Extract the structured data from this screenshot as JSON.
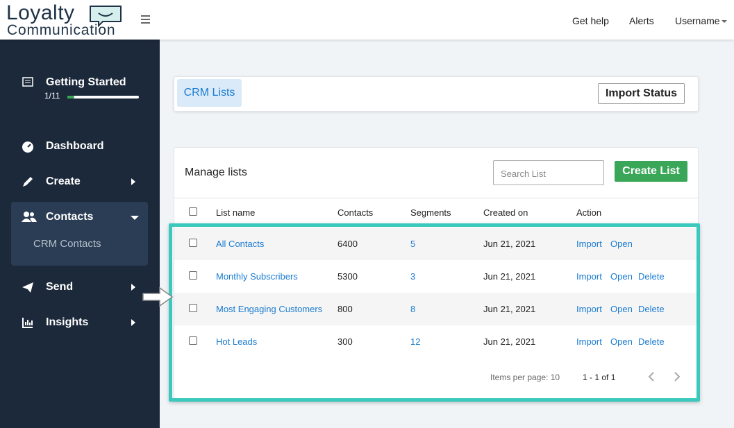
{
  "header": {
    "logo_line1": "Loyalty",
    "logo_line2": "Communication",
    "nav": [
      "Get help",
      "Alerts",
      "Username"
    ]
  },
  "sidebar": {
    "getting_started": {
      "title": "Getting Started",
      "progress": "1/11"
    },
    "items": [
      {
        "label": "Dashboard"
      },
      {
        "label": "Create"
      },
      {
        "label": "Contacts",
        "children": [
          "CRM Contacts"
        ]
      },
      {
        "label": "Send"
      },
      {
        "label": "Insights"
      }
    ]
  },
  "tabs": {
    "active": "CRM Lists",
    "button": "Import Status"
  },
  "panel": {
    "title": "Manage lists",
    "search_placeholder": "Search List",
    "create_button": "Create List",
    "columns": [
      "List name",
      "Contacts",
      "Segments",
      "Created on",
      "Action"
    ],
    "rows": [
      {
        "name": "All Contacts",
        "contacts": "6400",
        "segments": "5",
        "created": "Jun 21, 2021",
        "actions": [
          "Import",
          "Open"
        ]
      },
      {
        "name": "Monthly Subscribers",
        "contacts": "5300",
        "segments": "3",
        "created": "Jun 21, 2021",
        "actions": [
          "Import",
          "Open",
          "Delete"
        ]
      },
      {
        "name": "Most Engaging Customers",
        "contacts": "800",
        "segments": "8",
        "created": "Jun 21, 2021",
        "actions": [
          "Import",
          "Open",
          "Delete"
        ]
      },
      {
        "name": "Hot Leads",
        "contacts": "300",
        "segments": "12",
        "created": "Jun 21, 2021",
        "actions": [
          "Import",
          "Open",
          "Delete"
        ]
      }
    ],
    "footer": {
      "items_per_page": "Items per page: 10",
      "range": "1 - 1 of 1"
    }
  }
}
